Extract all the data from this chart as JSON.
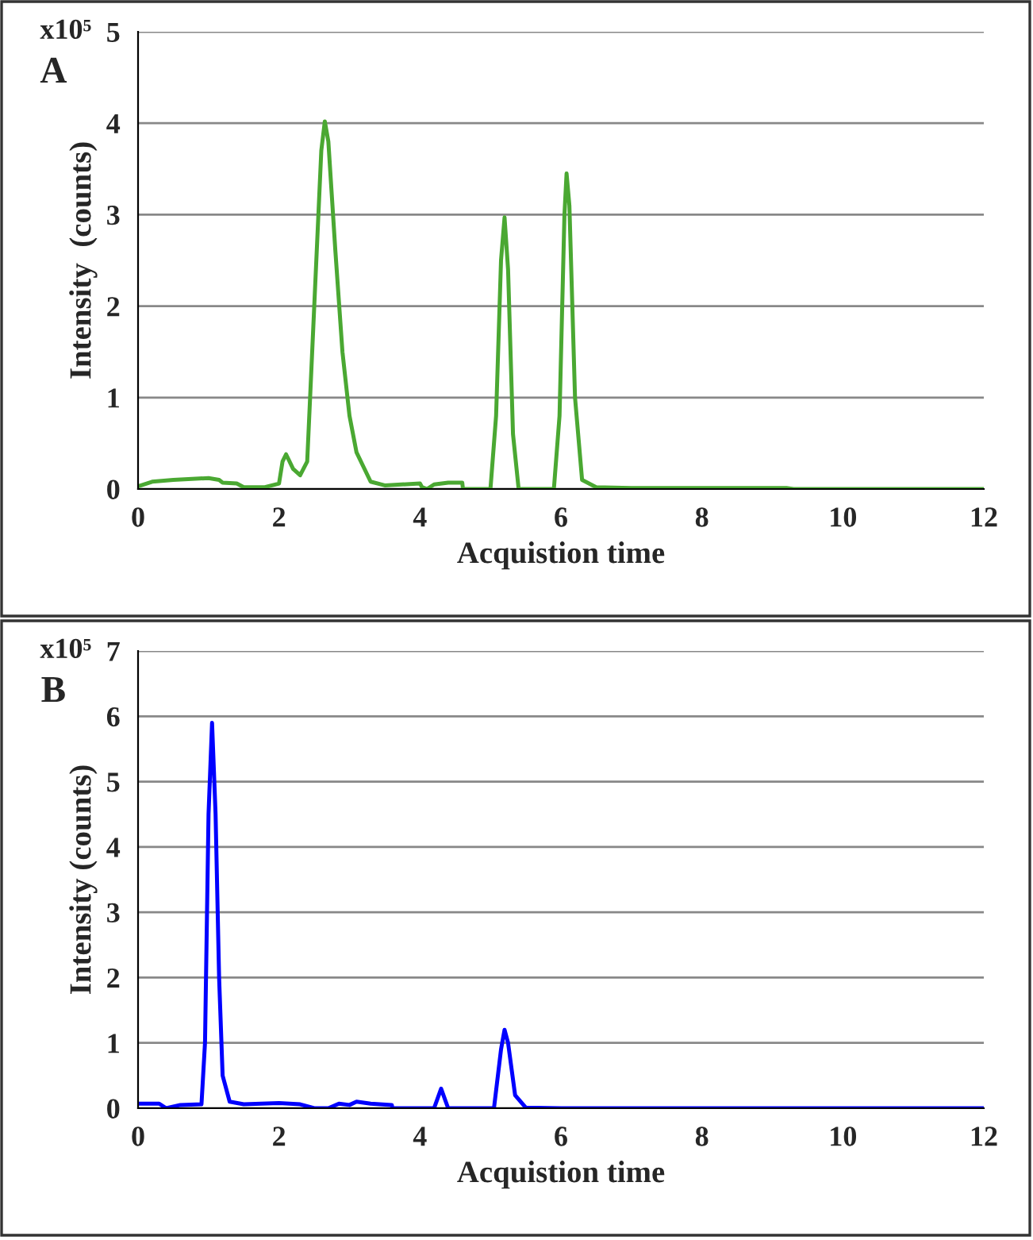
{
  "chart_data": [
    {
      "type": "line",
      "title": "A",
      "xlabel": "Acquistion time",
      "ylabel": "Intensity  (counts)",
      "annotations": [
        "x10⁵"
      ],
      "series": [
        {
          "color": "#4aa832",
          "x": [
            0,
            0.2,
            0.5,
            1.0,
            1.15,
            1.2,
            1.4,
            1.5,
            1.8,
            2.0,
            2.05,
            2.1,
            2.2,
            2.3,
            2.4,
            2.5,
            2.6,
            2.65,
            2.7,
            2.8,
            2.9,
            3.0,
            3.1,
            3.3,
            3.5,
            4.0,
            4.03,
            4.1,
            4.2,
            4.4,
            4.6,
            4.61,
            5.0,
            5.08,
            5.15,
            5.2,
            5.25,
            5.32,
            5.4,
            5.9,
            5.98,
            6.05,
            6.08,
            6.12,
            6.2,
            6.3,
            6.5,
            7,
            9.2,
            9.3,
            12
          ],
          "values": [
            0.03,
            0.08,
            0.1,
            0.12,
            0.1,
            0.07,
            0.06,
            0.02,
            0.02,
            0.06,
            0.3,
            0.38,
            0.22,
            0.15,
            0.3,
            2.0,
            3.7,
            4.02,
            3.8,
            2.6,
            1.5,
            0.8,
            0.4,
            0.08,
            0.04,
            0.06,
            0.02,
            0.0,
            0.05,
            0.07,
            0.07,
            0.0,
            0.0,
            0.8,
            2.5,
            2.97,
            2.4,
            0.6,
            0.0,
            0.0,
            0.8,
            3.0,
            3.45,
            3.1,
            1.0,
            0.1,
            0.02,
            0.01,
            0.01,
            0,
            0
          ]
        }
      ],
      "xlim": [
        0,
        12
      ],
      "xticks": [
        0,
        2,
        4,
        6,
        8,
        10,
        12
      ],
      "ylim": [
        0,
        5
      ],
      "yticks": [
        0,
        1,
        2,
        3,
        4,
        5
      ],
      "grid": "y",
      "marker": "none",
      "line_style": "solid",
      "legend": false
    },
    {
      "type": "line",
      "title": "B",
      "xlabel": "Acquistion time",
      "ylabel": "Intensity (counts)",
      "annotations": [
        "x10⁵"
      ],
      "series": [
        {
          "color": "#0000ff",
          "x": [
            0,
            0.3,
            0.4,
            0.6,
            0.9,
            0.95,
            1.0,
            1.05,
            1.1,
            1.15,
            1.2,
            1.3,
            1.5,
            2.0,
            2.3,
            2.5,
            2.7,
            2.85,
            3.0,
            3.1,
            3.3,
            3.6,
            3.61,
            4.2,
            4.3,
            4.4,
            5.05,
            5.15,
            5.2,
            5.25,
            5.35,
            5.5,
            6,
            12
          ],
          "values": [
            0.07,
            0.07,
            0.0,
            0.05,
            0.06,
            1.0,
            4.5,
            5.9,
            4.5,
            2.0,
            0.5,
            0.1,
            0.06,
            0.08,
            0.06,
            0.0,
            0.0,
            0.07,
            0.05,
            0.1,
            0.07,
            0.05,
            0.0,
            0.0,
            0.3,
            0.0,
            0.0,
            0.9,
            1.2,
            1.0,
            0.2,
            0.01,
            0,
            0
          ]
        }
      ],
      "xlim": [
        0,
        12
      ],
      "xticks": [
        0,
        2,
        4,
        6,
        8,
        10,
        12
      ],
      "ylim": [
        0,
        7
      ],
      "yticks": [
        0,
        1,
        2,
        3,
        4,
        5,
        6,
        7
      ],
      "grid": "y",
      "marker": "none",
      "line_style": "solid",
      "legend": false
    }
  ]
}
